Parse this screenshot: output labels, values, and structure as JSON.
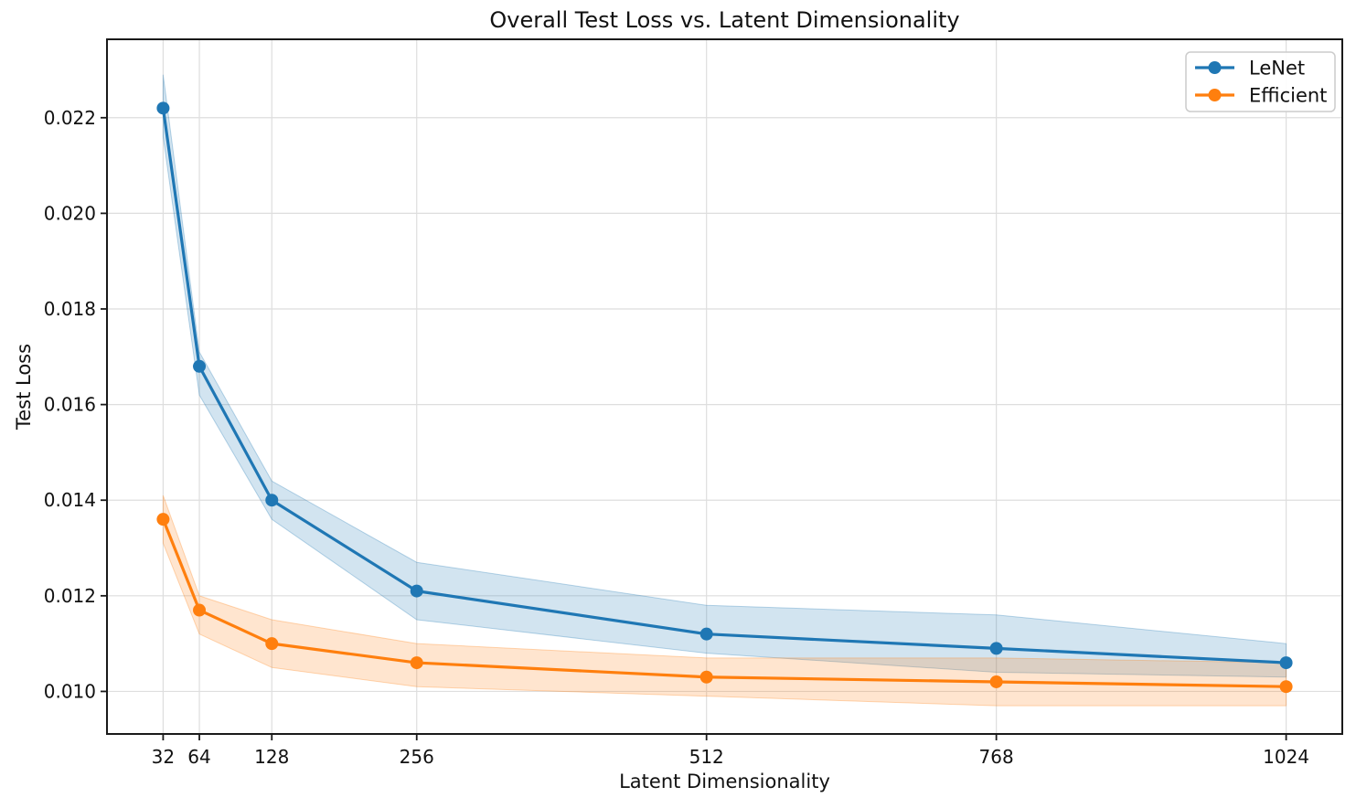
{
  "chart_data": {
    "type": "line",
    "title": "Overall Test Loss vs. Latent Dimensionality",
    "xlabel": "Latent Dimensionality",
    "ylabel": "Test Loss",
    "x": [
      32,
      64,
      128,
      256,
      512,
      768,
      1024
    ],
    "xticks": {
      "values": [
        32,
        64,
        128,
        256,
        512,
        768,
        1024
      ],
      "labels": [
        "32",
        "64",
        "128",
        "256",
        "512",
        "768",
        "1024"
      ]
    },
    "yticks": {
      "values": [
        0.01,
        0.012,
        0.014,
        0.016,
        0.018,
        0.02,
        0.022
      ],
      "labels": [
        "0.010",
        "0.012",
        "0.014",
        "0.016",
        "0.018",
        "0.020",
        "0.022"
      ]
    },
    "xlim": [
      -17.6,
      1073.6
    ],
    "ylim": [
      0.00911,
      0.02364
    ],
    "grid": true,
    "grid_color": "#dedede",
    "background": "#ffffff",
    "spine_color": "#1a1a1a",
    "band_alpha": 0.2,
    "marker": "circle",
    "legend": {
      "position": "upper right",
      "entries": [
        "LeNet",
        "Efficient"
      ]
    },
    "series": [
      {
        "name": "LeNet",
        "color": "#1f77b4",
        "values": [
          0.0222,
          0.0168,
          0.014,
          0.0121,
          0.0112,
          0.0109,
          0.0106
        ],
        "band_upper": [
          0.0229,
          0.0171,
          0.0144,
          0.0127,
          0.0118,
          0.0116,
          0.011
        ],
        "band_lower": [
          0.0216,
          0.0162,
          0.0136,
          0.0115,
          0.0108,
          0.0104,
          0.0103
        ]
      },
      {
        "name": "Efficient",
        "color": "#ff7f0e",
        "values": [
          0.0136,
          0.0117,
          0.011,
          0.0106,
          0.0103,
          0.0102,
          0.0101
        ],
        "band_upper": [
          0.0141,
          0.012,
          0.0115,
          0.011,
          0.0107,
          0.0107,
          0.0106
        ],
        "band_lower": [
          0.0131,
          0.0112,
          0.0105,
          0.0101,
          0.0099,
          0.0097,
          0.0097
        ]
      }
    ]
  }
}
